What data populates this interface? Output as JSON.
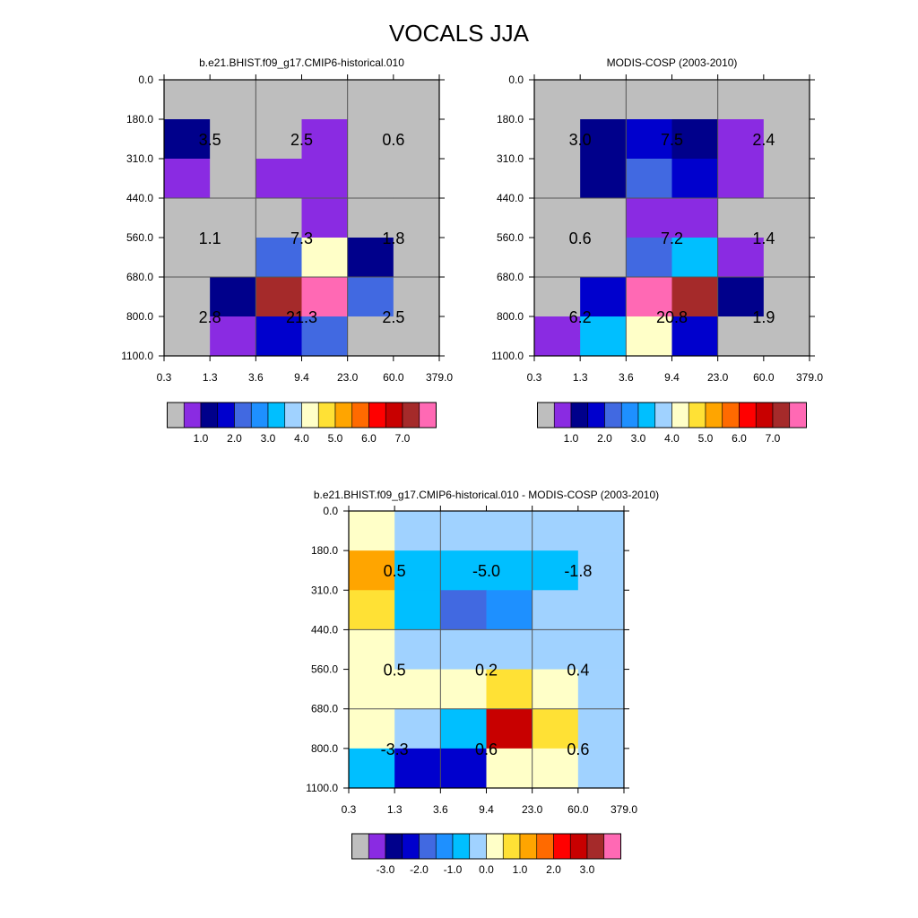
{
  "figure_title": "VOCALS JJA",
  "colors": {
    "missing": "#BEBEBE",
    "abs_palette": [
      "#BEBEBE",
      "#8A2BE2",
      "#00008B",
      "#0000CD",
      "#4169E1",
      "#1E90FF",
      "#00BFFF",
      "#A0D2FF",
      "#FFFFC8",
      "#FFE135",
      "#FFA500",
      "#FF6A00",
      "#FF0000",
      "#C80000",
      "#A52A2A",
      "#FF69B4"
    ],
    "diff_palette": [
      "#BEBEBE",
      "#8A2BE2",
      "#00008B",
      "#0000CD",
      "#4169E1",
      "#1E90FF",
      "#00BFFF",
      "#A0D2FF",
      "#FFFFC8",
      "#FFE135",
      "#FFA500",
      "#FF6A00",
      "#FF0000",
      "#C80000",
      "#A52A2A",
      "#FF69B4"
    ]
  },
  "chart_data": [
    {
      "type": "heatmap",
      "title": "b.e21.BHIST.f09_g17.CMIP6-historical.010",
      "x_ticks": [
        "0.3",
        "1.3",
        "3.6",
        "9.4",
        "23.0",
        "60.0",
        "379.0"
      ],
      "y_ticks": [
        "0.0",
        "180.0",
        "310.0",
        "440.0",
        "560.0",
        "680.0",
        "800.0",
        "1100.0"
      ],
      "cells": [
        [
          "missing",
          "missing",
          "missing",
          "missing",
          "missing",
          "missing"
        ],
        [
          "#00008B",
          "missing",
          "missing",
          "#8A2BE2",
          "missing",
          "missing"
        ],
        [
          "#8A2BE2",
          "missing",
          "#8A2BE2",
          "#8A2BE2",
          "missing",
          "missing"
        ],
        [
          "missing",
          "missing",
          "missing",
          "#8A2BE2",
          "missing",
          "missing"
        ],
        [
          "missing",
          "missing",
          "#4169E1",
          "#FFFFC8",
          "#00008B",
          "missing"
        ],
        [
          "missing",
          "#00008B",
          "#A52A2A",
          "#FF69B4",
          "#4169E1",
          "missing"
        ],
        [
          "missing",
          "#8A2BE2",
          "#0000CD",
          "#4169E1",
          "missing",
          "missing"
        ]
      ],
      "box_labels": [
        [
          "3.5",
          "2.5",
          "0.6"
        ],
        [
          "1.1",
          "7.3",
          "1.8"
        ],
        [
          "2.8",
          "21.3",
          "2.5"
        ]
      ],
      "colorbar_labels": [
        "1.0",
        "2.0",
        "3.0",
        "4.0",
        "5.0",
        "6.0",
        "7.0"
      ]
    },
    {
      "type": "heatmap",
      "title": "MODIS-COSP (2003-2010)",
      "x_ticks": [
        "0.3",
        "1.3",
        "3.6",
        "9.4",
        "23.0",
        "60.0",
        "379.0"
      ],
      "y_ticks": [
        "0.0",
        "180.0",
        "310.0",
        "440.0",
        "560.0",
        "680.0",
        "800.0",
        "1100.0"
      ],
      "cells": [
        [
          "missing",
          "missing",
          "missing",
          "missing",
          "missing",
          "missing"
        ],
        [
          "missing",
          "#00008B",
          "#0000CD",
          "#00008B",
          "#8A2BE2",
          "missing"
        ],
        [
          "missing",
          "#00008B",
          "#4169E1",
          "#0000CD",
          "#8A2BE2",
          "missing"
        ],
        [
          "missing",
          "missing",
          "#8A2BE2",
          "#8A2BE2",
          "missing",
          "missing"
        ],
        [
          "missing",
          "missing",
          "#4169E1",
          "#00BFFF",
          "#8A2BE2",
          "missing"
        ],
        [
          "missing",
          "#0000CD",
          "#FF69B4",
          "#A52A2A",
          "#00008B",
          "missing"
        ],
        [
          "#8A2BE2",
          "#00BFFF",
          "#FFFFC8",
          "#0000CD",
          "missing",
          "missing"
        ]
      ],
      "box_labels": [
        [
          "3.0",
          "7.5",
          "2.4"
        ],
        [
          "0.6",
          "7.2",
          "1.4"
        ],
        [
          "6.2",
          "20.8",
          "1.9"
        ]
      ],
      "colorbar_labels": [
        "1.0",
        "2.0",
        "3.0",
        "4.0",
        "5.0",
        "6.0",
        "7.0"
      ]
    },
    {
      "type": "heatmap",
      "title": "b.e21.BHIST.f09_g17.CMIP6-historical.010 - MODIS-COSP (2003-2010)",
      "x_ticks": [
        "0.3",
        "1.3",
        "3.6",
        "9.4",
        "23.0",
        "60.0",
        "379.0"
      ],
      "y_ticks": [
        "0.0",
        "180.0",
        "310.0",
        "440.0",
        "560.0",
        "680.0",
        "800.0",
        "1100.0"
      ],
      "cells": [
        [
          "#FFFFC8",
          "#A0D2FF",
          "#A0D2FF",
          "#A0D2FF",
          "#A0D2FF",
          "#A0D2FF"
        ],
        [
          "#FFA500",
          "#00BFFF",
          "#00BFFF",
          "#00BFFF",
          "#00BFFF",
          "#A0D2FF"
        ],
        [
          "#FFE135",
          "#00BFFF",
          "#4169E1",
          "#1E90FF",
          "#A0D2FF",
          "#A0D2FF"
        ],
        [
          "#FFFFC8",
          "#A0D2FF",
          "#A0D2FF",
          "#A0D2FF",
          "#A0D2FF",
          "#A0D2FF"
        ],
        [
          "#FFFFC8",
          "#FFFFC8",
          "#FFFFC8",
          "#FFE135",
          "#FFFFC8",
          "#A0D2FF"
        ],
        [
          "#FFFFC8",
          "#A0D2FF",
          "#00BFFF",
          "#C80000",
          "#FFE135",
          "#A0D2FF"
        ],
        [
          "#00BFFF",
          "#0000CD",
          "#0000CD",
          "#FFFFC8",
          "#FFFFC8",
          "#A0D2FF"
        ]
      ],
      "box_labels": [
        [
          "0.5",
          "-5.0",
          "-1.8"
        ],
        [
          "0.5",
          "0.2",
          "0.4"
        ],
        [
          "-3.3",
          "0.6",
          "0.6"
        ]
      ],
      "colorbar_labels": [
        "-3.0",
        "-2.0",
        "-1.0",
        "0.0",
        "1.0",
        "2.0",
        "3.0"
      ]
    }
  ]
}
